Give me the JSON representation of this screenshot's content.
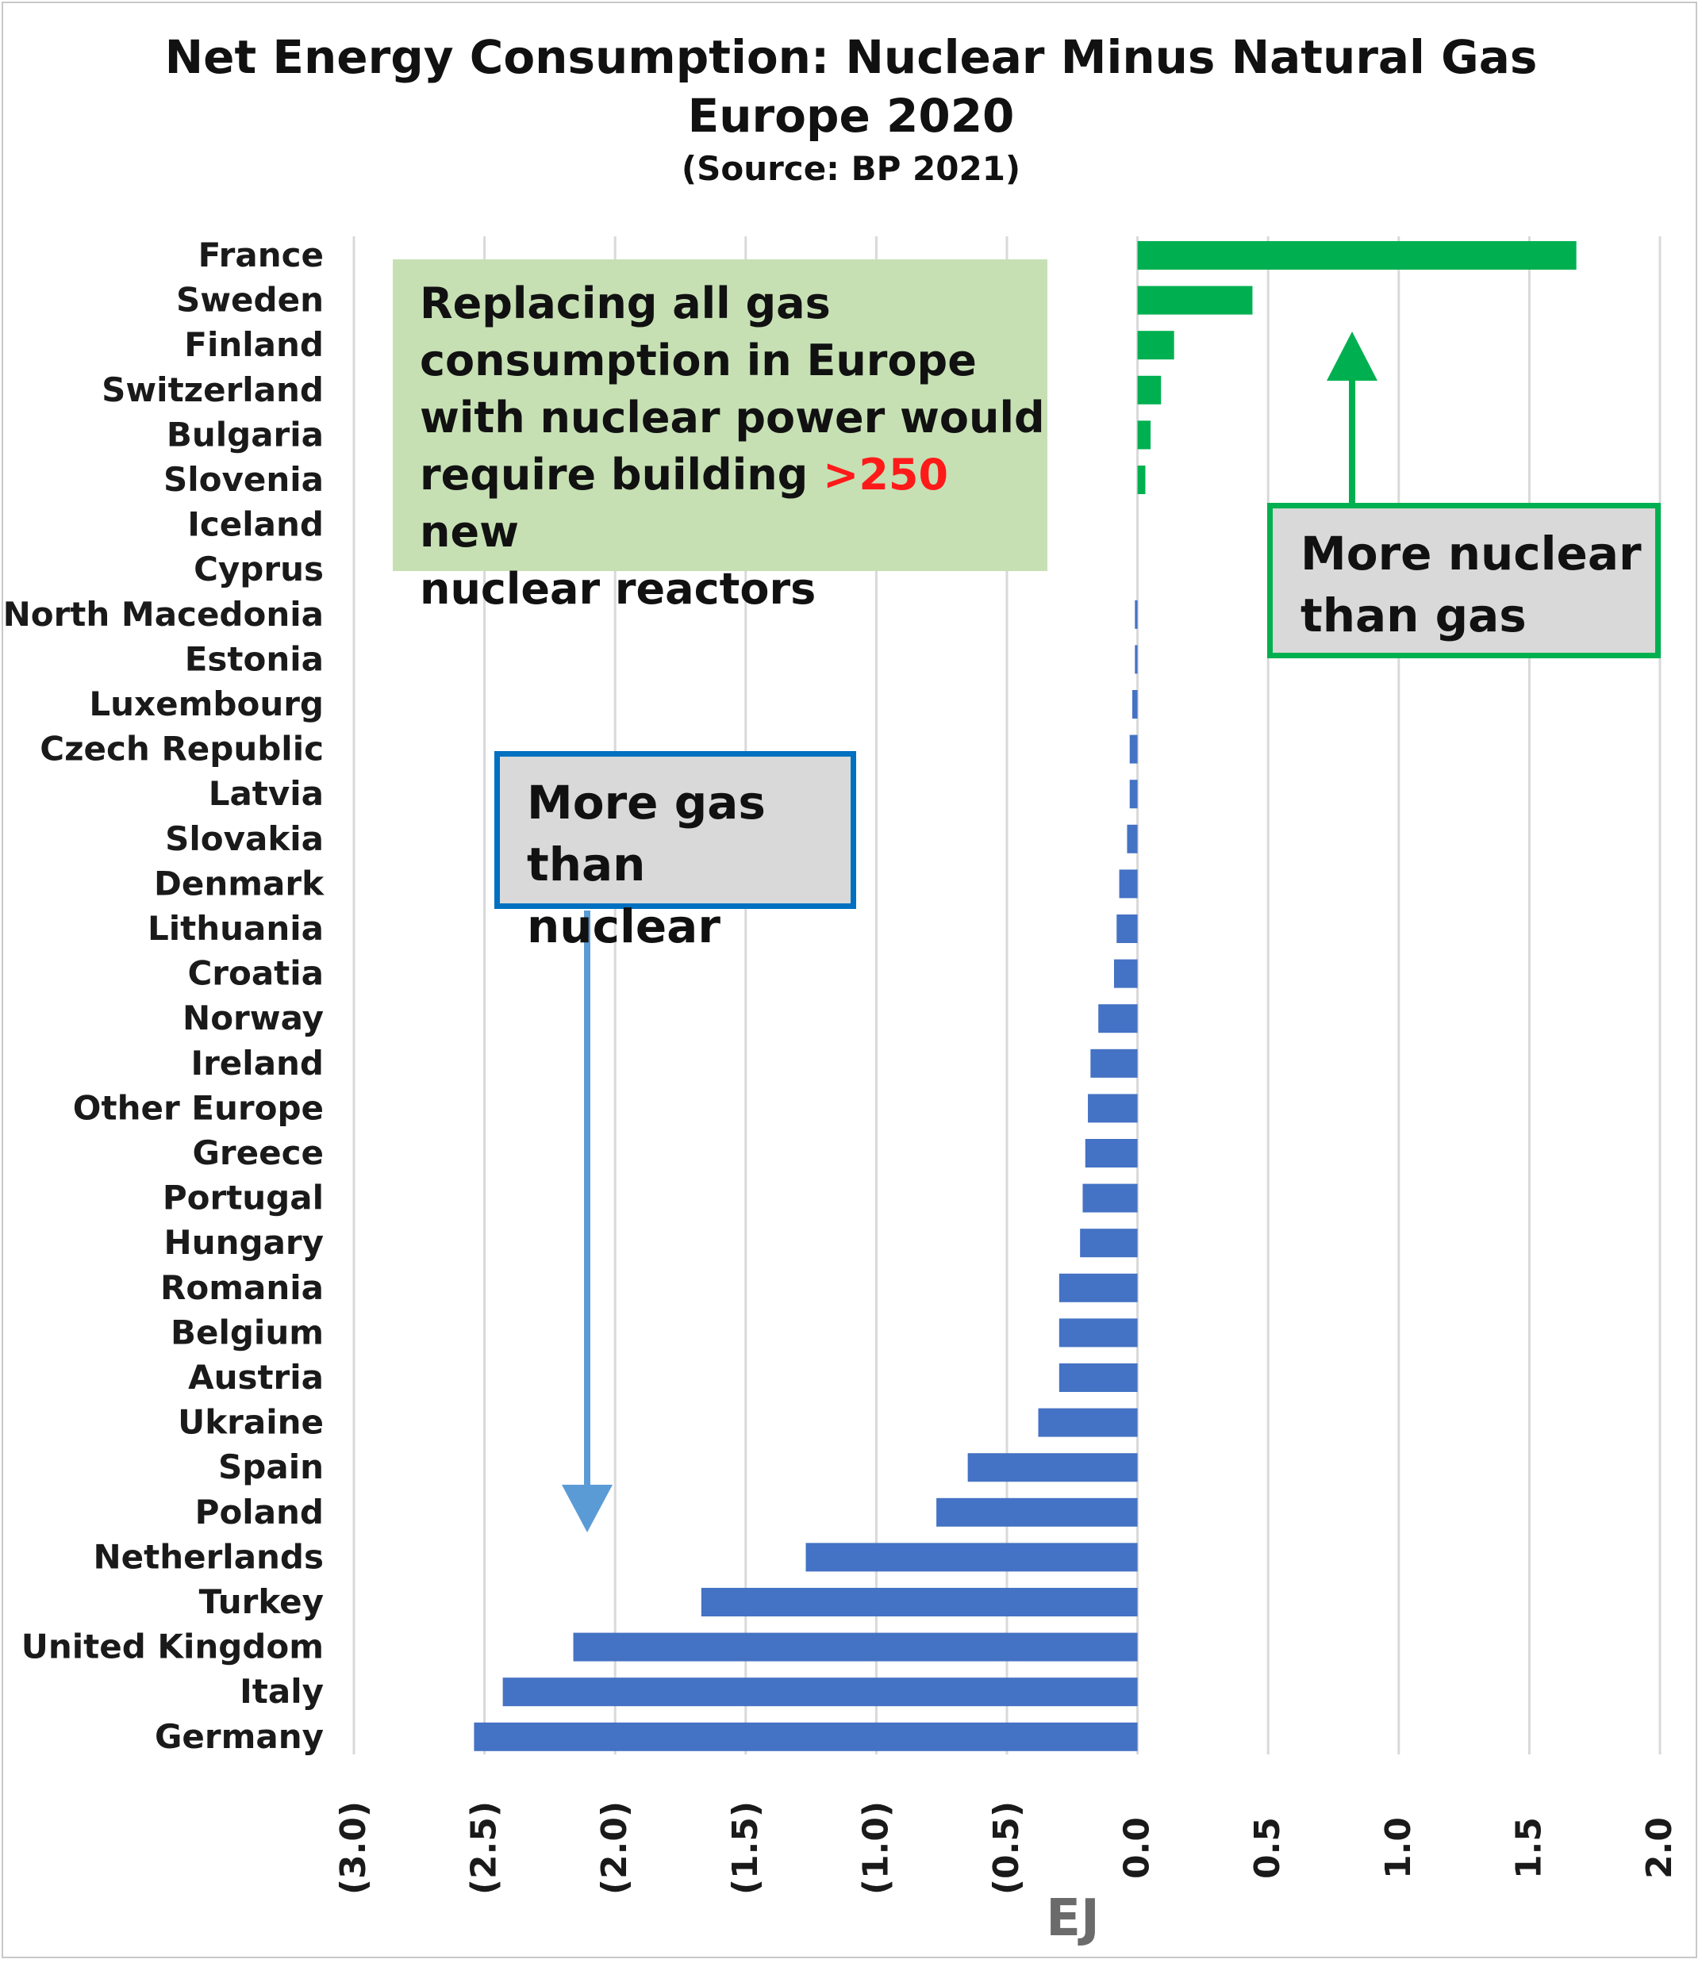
{
  "title": "Net Energy Consumption: Nuclear Minus Natural Gas",
  "subtitle": "Europe 2020",
  "source": "(Source: BP 2021)",
  "annotations": {
    "note_lines": [
      "Replacing all gas",
      "consumption in Europe",
      "with nuclear power would"
    ],
    "note_line4_pre": "require building ",
    "note_highlight": ">250",
    "note_line4_post": " new",
    "note_line5": "nuclear reactors",
    "nuclear_box_lines": [
      "More nuclear",
      "than gas"
    ],
    "gas_box_lines": [
      "More gas",
      "than nuclear"
    ]
  },
  "colors": {
    "positive": "#00b050",
    "negative": "#4472c4",
    "gas_arrow": "#5b9bd5",
    "nuclear_arrow": "#00b050",
    "highlight": "#ff1a1a",
    "grid": "#d9d9d9"
  },
  "chart_data": {
    "type": "bar",
    "orientation": "horizontal",
    "title": "Net Energy Consumption: Nuclear Minus Natural Gas",
    "subtitle": "Europe 2020",
    "xlabel": "EJ",
    "ylabel": "",
    "xlim": [
      -3.0,
      2.0
    ],
    "xticks": [
      -3.0,
      -2.5,
      -2.0,
      -1.5,
      -1.0,
      -0.5,
      0.0,
      0.5,
      1.0,
      1.5,
      2.0
    ],
    "xtick_labels": [
      "(3.0)",
      "(2.5)",
      "(2.0)",
      "(1.5)",
      "(1.0)",
      "(0.5)",
      "0.0",
      "0.5",
      "1.0",
      "1.5",
      "2.0"
    ],
    "grid": "vertical",
    "legend": "none",
    "categories": [
      "France",
      "Sweden",
      "Finland",
      "Switzerland",
      "Bulgaria",
      "Slovenia",
      "Iceland",
      "Cyprus",
      "North Macedonia",
      "Estonia",
      "Luxembourg",
      "Czech Republic",
      "Latvia",
      "Slovakia",
      "Denmark",
      "Lithuania",
      "Croatia",
      "Norway",
      "Ireland",
      "Other Europe",
      "Greece",
      "Portugal",
      "Hungary",
      "Romania",
      "Belgium",
      "Austria",
      "Ukraine",
      "Spain",
      "Poland",
      "Netherlands",
      "Turkey",
      "United Kingdom",
      "Italy",
      "Germany"
    ],
    "values": [
      1.68,
      0.44,
      0.14,
      0.09,
      0.05,
      0.03,
      0.0,
      0.0,
      -0.01,
      -0.01,
      -0.02,
      -0.03,
      -0.03,
      -0.04,
      -0.07,
      -0.08,
      -0.09,
      -0.15,
      -0.18,
      -0.19,
      -0.2,
      -0.21,
      -0.22,
      -0.3,
      -0.3,
      -0.3,
      -0.38,
      -0.65,
      -0.77,
      -1.27,
      -1.67,
      -2.16,
      -2.43,
      -2.54
    ]
  }
}
